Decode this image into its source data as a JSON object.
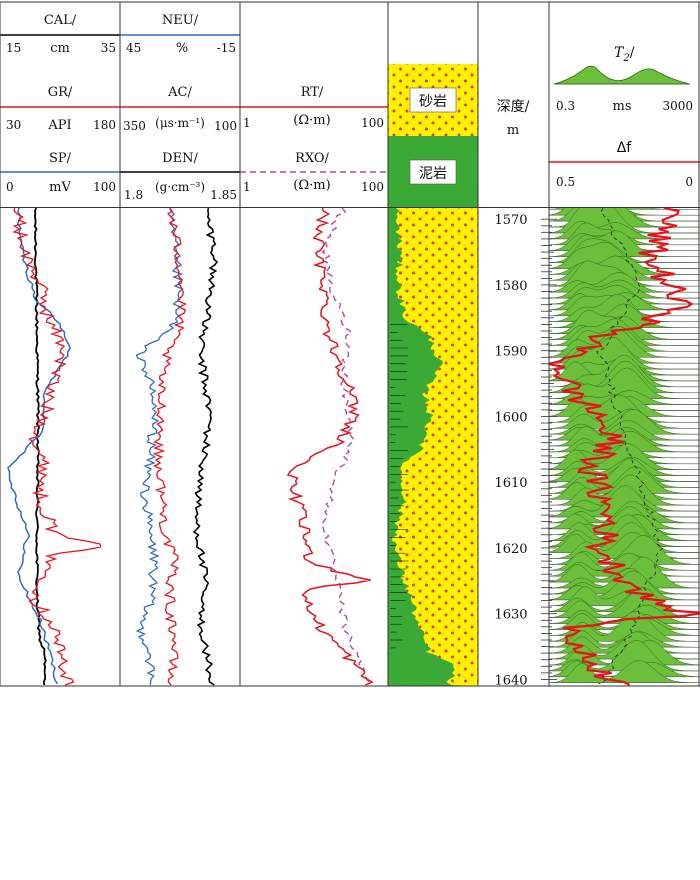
{
  "colors": {
    "red": "#e8121c",
    "blue": "#2f6cc4",
    "black": "#000000",
    "magenta_dashed": "#b04aa8",
    "sand": "#fff200",
    "sand_dots": "#e23b3b",
    "mud": "#3aa935",
    "t2_fill": "#6bbf3a",
    "t2_outline": "#2f6b1b"
  },
  "tracks": {
    "t1": {
      "curves": [
        {
          "name": "CAL/",
          "unit": "cm",
          "min": "15",
          "max": "35",
          "color_key": "black"
        },
        {
          "name": "GR/",
          "unit": "API",
          "min": "30",
          "max": "180",
          "color_key": "red"
        },
        {
          "name": "SP/",
          "unit": "mV",
          "min": "0",
          "max": "100",
          "color_key": "blue"
        }
      ]
    },
    "t2": {
      "curves": [
        {
          "name": "NEU/",
          "unit": "%",
          "min": "45",
          "max": "-15",
          "color_key": "blue"
        },
        {
          "name": "AC/",
          "unit": "(μs·m⁻¹)",
          "min": "350",
          "max": "100",
          "color_key": "red"
        },
        {
          "name": "DEN/",
          "unit": "(g·cm⁻³)",
          "min": "1.8",
          "max": "1.85",
          "color_key": "black"
        }
      ]
    },
    "t3": {
      "curves": [
        {
          "name": "RT/",
          "unit": "(Ω·m)",
          "min": "1",
          "max": "100",
          "color_key": "red"
        },
        {
          "name": "RXO/",
          "unit": "(Ω·m)",
          "min": "1",
          "max": "100",
          "color_key": "magenta_dashed"
        }
      ]
    },
    "lith": {
      "legend": [
        {
          "label": "砂岩",
          "type": "sandstone"
        },
        {
          "label": "泥岩",
          "type": "mudstone"
        }
      ]
    },
    "depth": {
      "title": "深度/",
      "unit": "m",
      "ticks": [
        "1570",
        "1580",
        "1590",
        "1600",
        "1610",
        "1620",
        "1630",
        "1640"
      ]
    },
    "t2nmr": {
      "title": "T",
      "title_sub": "2",
      "title_suffix": "/",
      "unit": "ms",
      "min": "0.3",
      "max": "3000",
      "df_label": "Δf",
      "df_min": "0.5",
      "df_max": "0"
    }
  }
}
